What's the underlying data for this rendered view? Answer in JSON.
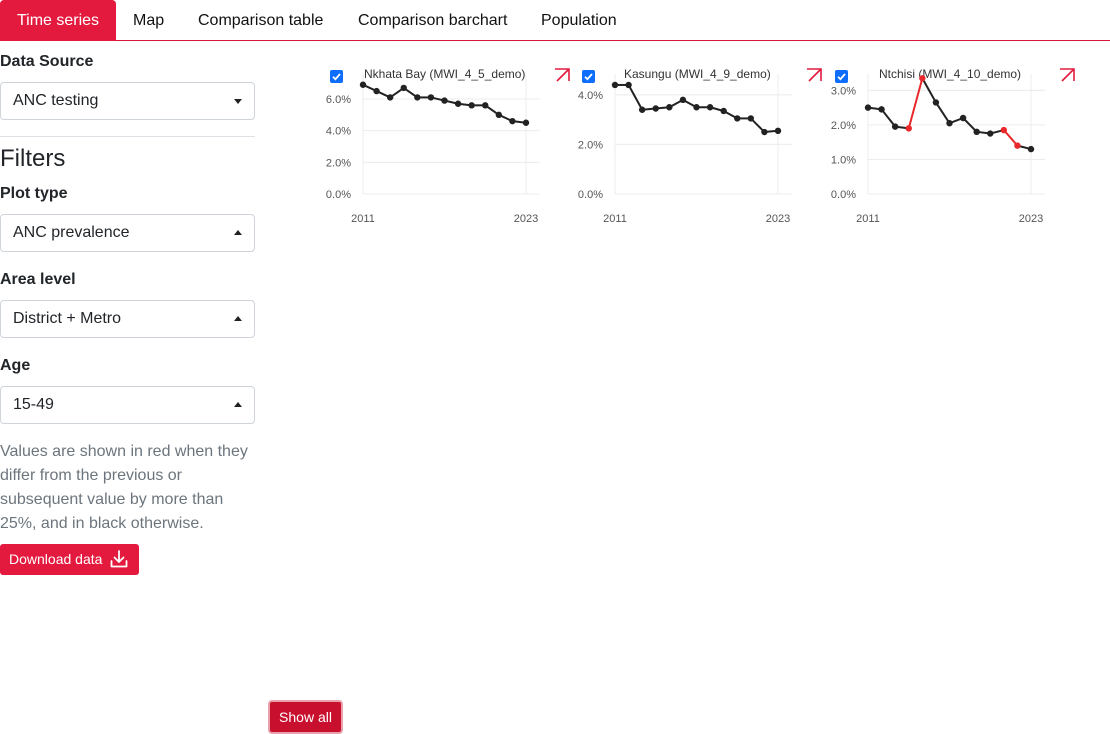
{
  "tabs": [
    {
      "label": "Time series",
      "active": true
    },
    {
      "label": "Map",
      "active": false
    },
    {
      "label": "Comparison table",
      "active": false
    },
    {
      "label": "Comparison barchart",
      "active": false
    },
    {
      "label": "Population",
      "active": false
    }
  ],
  "sidebar": {
    "data_source_label": "Data Source",
    "data_source_value": "ANC testing",
    "filters_title": "Filters",
    "plot_type_label": "Plot type",
    "plot_type_value": "ANC prevalence",
    "area_level_label": "Area level",
    "area_level_value": "District + Metro",
    "age_label": "Age",
    "age_value": "15-49",
    "note": "Values are shown in red when they differ from the previous or subsequent value by more than 25%, and in black otherwise.",
    "download_label": "Download data"
  },
  "show_all_label": "Show all",
  "colors": {
    "accent": "#e31a3e",
    "normal": "#222222",
    "flagged": "#e8282b",
    "checkbox": "#0d6efd"
  },
  "chart_data": [
    {
      "type": "line",
      "title": "Nkhata Bay (MWI_4_5_demo)",
      "checked": true,
      "x": [
        2011,
        2012,
        2013,
        2014,
        2015,
        2016,
        2017,
        2018,
        2019,
        2020,
        2021,
        2022,
        2023
      ],
      "values": [
        6.9,
        6.5,
        6.1,
        6.7,
        6.1,
        6.1,
        5.9,
        5.7,
        5.6,
        5.6,
        5.0,
        4.6,
        4.5
      ],
      "flagged": [
        false,
        false,
        false,
        false,
        false,
        false,
        false,
        false,
        false,
        false,
        false,
        false,
        false
      ],
      "ylim": [
        0,
        7.2
      ],
      "yticks": [
        0,
        2,
        4,
        6
      ],
      "ytick_labels": [
        "0.0%",
        "2.0%",
        "4.0%",
        "6.0%"
      ],
      "xtick_labels": [
        "2011",
        "2023"
      ]
    },
    {
      "type": "line",
      "title": "Kasungu (MWI_4_9_demo)",
      "checked": true,
      "x": [
        2011,
        2012,
        2013,
        2014,
        2015,
        2016,
        2017,
        2018,
        2019,
        2020,
        2021,
        2022,
        2023
      ],
      "values": [
        4.4,
        4.4,
        3.4,
        3.45,
        3.5,
        3.8,
        3.5,
        3.5,
        3.35,
        3.05,
        3.05,
        2.5,
        2.55
      ],
      "flagged": [
        false,
        false,
        false,
        false,
        false,
        false,
        false,
        false,
        false,
        false,
        false,
        false,
        false
      ],
      "ylim": [
        0,
        4.6
      ],
      "yticks": [
        0,
        2,
        4
      ],
      "ytick_labels": [
        "0.0%",
        "2.0%",
        "4.0%"
      ],
      "xtick_labels": [
        "2011",
        "2023"
      ]
    },
    {
      "type": "line",
      "title": "Ntchisi (MWI_4_10_demo)",
      "checked": true,
      "x": [
        2011,
        2012,
        2013,
        2014,
        2015,
        2016,
        2017,
        2018,
        2019,
        2020,
        2021,
        2022,
        2023
      ],
      "values": [
        2.5,
        2.45,
        1.95,
        1.9,
        3.35,
        2.65,
        2.05,
        2.2,
        1.8,
        1.75,
        1.85,
        1.4,
        1.3
      ],
      "flagged": [
        false,
        false,
        false,
        true,
        true,
        false,
        false,
        false,
        false,
        false,
        true,
        true,
        false
      ],
      "ylim": [
        0,
        3.3
      ],
      "yticks": [
        0,
        1,
        2,
        3
      ],
      "ytick_labels": [
        "0.0%",
        "1.0%",
        "2.0%",
        "3.0%"
      ],
      "xtick_labels": [
        "2011",
        "2023"
      ]
    }
  ]
}
